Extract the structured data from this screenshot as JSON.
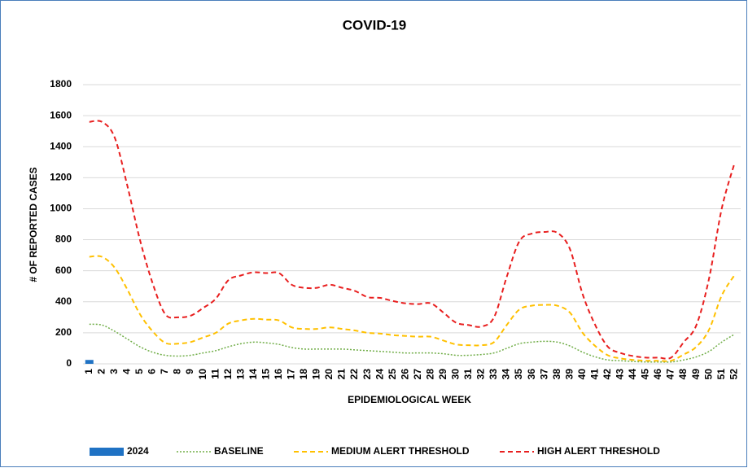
{
  "chart_data": {
    "type": "line",
    "title": "COVID-19",
    "x_label": "EPIDEMIOLOGICAL WEEK",
    "y_label": "# OF REPORTED CASES",
    "categories": [
      "1",
      "2",
      "3",
      "4",
      "5",
      "6",
      "7",
      "8",
      "9",
      "10",
      "11",
      "12",
      "13",
      "14",
      "15",
      "16",
      "17",
      "18",
      "19",
      "20",
      "21",
      "22",
      "23",
      "24",
      "25",
      "26",
      "27",
      "28",
      "29",
      "30",
      "31",
      "32",
      "33",
      "34",
      "35",
      "36",
      "37",
      "38",
      "39",
      "40",
      "41",
      "42",
      "43",
      "44",
      "45",
      "46",
      "47",
      "48",
      "49",
      "50",
      "51",
      "52"
    ],
    "ylim": [
      0,
      1800
    ],
    "yticks": [
      0,
      200,
      400,
      600,
      800,
      1000,
      1200,
      1400,
      1600,
      1800
    ],
    "grid": true,
    "legend": "bottom",
    "series": [
      {
        "name": "2024",
        "kind": "bar",
        "color": "#1f72c4",
        "values": [
          25,
          null,
          null,
          null,
          null,
          null,
          null,
          null,
          null,
          null,
          null,
          null,
          null,
          null,
          null,
          null,
          null,
          null,
          null,
          null,
          null,
          null,
          null,
          null,
          null,
          null,
          null,
          null,
          null,
          null,
          null,
          null,
          null,
          null,
          null,
          null,
          null,
          null,
          null,
          null,
          null,
          null,
          null,
          null,
          null,
          null,
          null,
          null,
          null,
          null,
          null,
          null
        ]
      },
      {
        "name": "BASELINE",
        "kind": "line",
        "dash": "dotted",
        "color": "#70ad47",
        "values": [
          255,
          250,
          210,
          160,
          110,
          75,
          55,
          50,
          55,
          70,
          85,
          110,
          130,
          140,
          135,
          125,
          105,
          95,
          95,
          95,
          95,
          90,
          85,
          80,
          75,
          70,
          70,
          70,
          65,
          55,
          55,
          60,
          70,
          100,
          130,
          140,
          145,
          140,
          115,
          75,
          45,
          25,
          20,
          15,
          12,
          12,
          12,
          25,
          45,
          80,
          140,
          190
        ]
      },
      {
        "name": "MEDIUM ALERT THRESHOLD",
        "kind": "line",
        "dash": "dashed",
        "color": "#ffc000",
        "values": [
          690,
          690,
          620,
          480,
          320,
          210,
          135,
          130,
          140,
          170,
          200,
          260,
          280,
          290,
          285,
          280,
          235,
          225,
          225,
          235,
          225,
          215,
          200,
          195,
          185,
          180,
          175,
          175,
          150,
          125,
          120,
          120,
          140,
          250,
          350,
          375,
          380,
          375,
          330,
          200,
          115,
          55,
          35,
          25,
          20,
          20,
          20,
          60,
          110,
          220,
          440,
          570
        ]
      },
      {
        "name": "HIGH ALERT THRESHOLD",
        "kind": "line",
        "dash": "dashed",
        "color": "#e81f1f",
        "values": [
          1560,
          1560,
          1460,
          1150,
          800,
          520,
          320,
          300,
          310,
          360,
          420,
          540,
          570,
          590,
          585,
          585,
          510,
          490,
          490,
          510,
          490,
          470,
          430,
          425,
          405,
          390,
          385,
          390,
          330,
          265,
          250,
          240,
          300,
          560,
          790,
          840,
          850,
          845,
          740,
          450,
          250,
          110,
          70,
          50,
          40,
          40,
          40,
          140,
          250,
          550,
          1000,
          1290
        ]
      }
    ]
  }
}
